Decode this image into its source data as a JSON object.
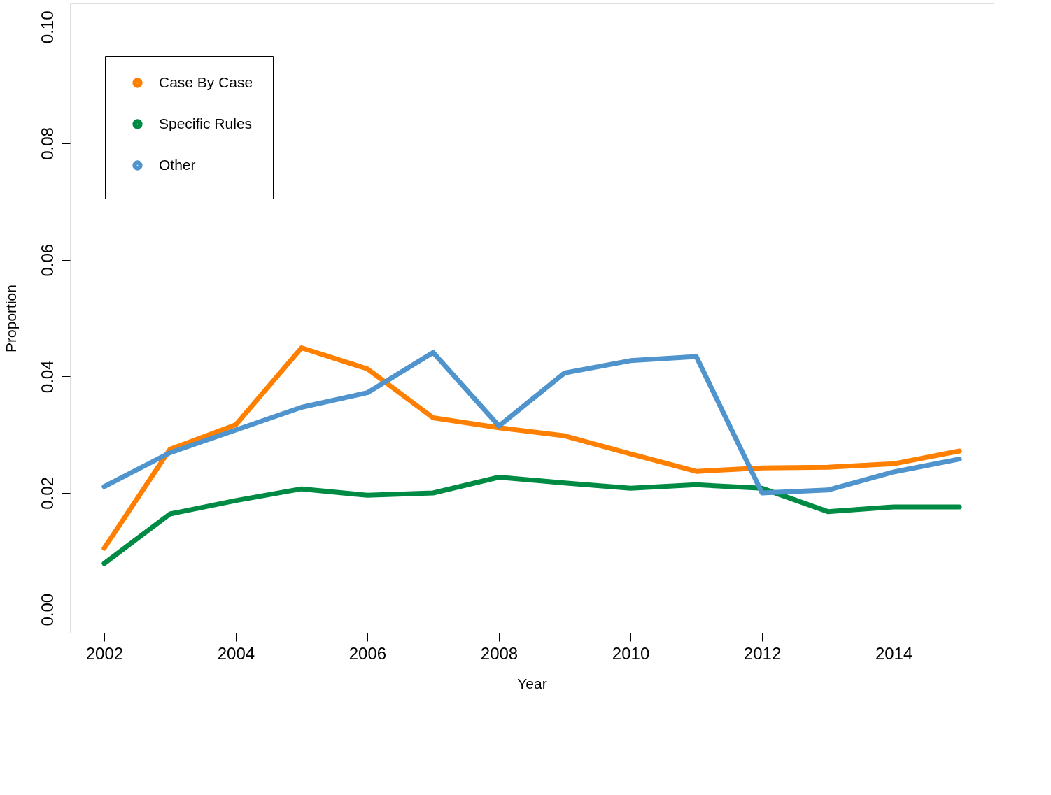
{
  "chart_data": {
    "type": "line",
    "xlabel": "Year",
    "ylabel": "Proportion",
    "x": [
      2002,
      2003,
      2004,
      2005,
      2006,
      2007,
      2008,
      2009,
      2010,
      2011,
      2012,
      2013,
      2014,
      2015
    ],
    "series": [
      {
        "name": "Case By Case",
        "color": "#ff7f00",
        "values": [
          0.0105,
          0.0275,
          0.0317,
          0.0449,
          0.0413,
          0.0329,
          0.0312,
          0.0298,
          0.0267,
          0.0237,
          0.0243,
          0.0244,
          0.025,
          0.0272
        ]
      },
      {
        "name": "Specific Rules",
        "color": "#008b45",
        "values": [
          0.0079,
          0.0164,
          0.0187,
          0.0207,
          0.0196,
          0.02,
          0.0227,
          0.0217,
          0.0208,
          0.0214,
          0.0208,
          0.0168,
          0.0176,
          0.0176
        ]
      },
      {
        "name": "Other",
        "color": "#4f94cd",
        "values": [
          0.0211,
          0.0269,
          0.0308,
          0.0347,
          0.0372,
          0.0441,
          0.0315,
          0.0406,
          0.0427,
          0.0434,
          0.02,
          0.0205,
          0.0236,
          0.0258
        ]
      }
    ],
    "xlim": [
      2001.48,
      2015.52
    ],
    "xticks": [
      2002,
      2004,
      2006,
      2008,
      2010,
      2012,
      2014
    ],
    "ylim": [
      -0.004,
      0.104
    ],
    "yticks": [
      {
        "value": 0,
        "label": "0.00"
      },
      {
        "value": 0.02,
        "label": "0.02"
      },
      {
        "value": 0.04,
        "label": "0.04"
      },
      {
        "value": 0.06,
        "label": "0.06"
      },
      {
        "value": 0.08,
        "label": "0.08"
      },
      {
        "value": 0.1,
        "label": "0.10"
      }
    ],
    "grid": false,
    "legend": "top left",
    "line_style": "solid"
  }
}
